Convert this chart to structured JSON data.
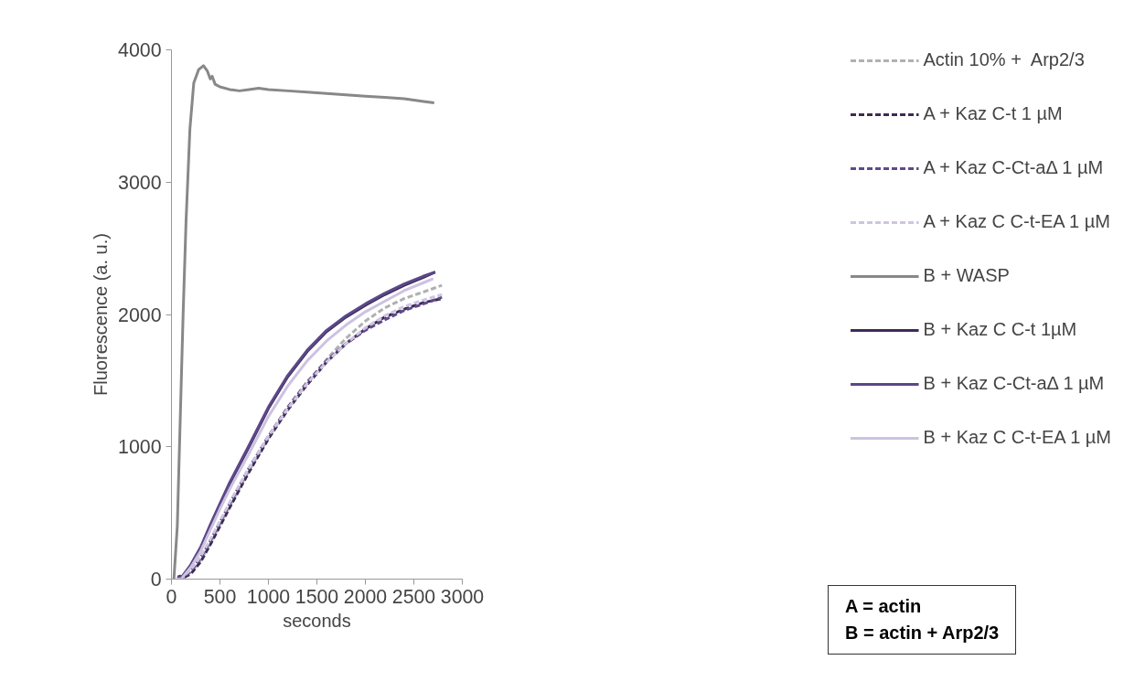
{
  "chart_data": {
    "type": "line",
    "xlabel": "seconds",
    "ylabel": "Fluorescence (a. u.)",
    "xlim": [
      0,
      3000
    ],
    "ylim": [
      0,
      4000
    ],
    "xticks": [
      0,
      500,
      1000,
      1500,
      2000,
      2500,
      3000
    ],
    "yticks": [
      0,
      1000,
      2000,
      3000,
      4000
    ],
    "grid": false,
    "legend": "right",
    "annotations": [
      "A = actin",
      "B = actin + Arp2/3"
    ],
    "series": [
      {
        "name": "Actin 10% +  Arp2/3",
        "color": "#b0b0b0",
        "line_style": "dashed",
        "x": [
          80,
          100,
          200,
          300,
          400,
          500,
          600,
          800,
          1000,
          1200,
          1400,
          1600,
          1800,
          2000,
          2200,
          2400,
          2600,
          2790
        ],
        "values": [
          0,
          20,
          50,
          140,
          270,
          410,
          550,
          820,
          1070,
          1290,
          1480,
          1660,
          1820,
          1950,
          2050,
          2120,
          2170,
          2220
        ]
      },
      {
        "name": "A + Kaz C-t 1 µM",
        "color": "#3b2a55",
        "line_style": "dashed",
        "x": [
          80,
          100,
          200,
          300,
          400,
          500,
          600,
          800,
          1000,
          1200,
          1400,
          1600,
          1800,
          2000,
          2200,
          2400,
          2600,
          2790
        ],
        "values": [
          30,
          0,
          40,
          130,
          260,
          400,
          540,
          810,
          1060,
          1280,
          1470,
          1640,
          1780,
          1890,
          1980,
          2040,
          2090,
          2120
        ]
      },
      {
        "name": "A + Kaz C-Ct-aΔ 1 µM",
        "color": "#5e4a8a",
        "line_style": "dashed",
        "x": [
          80,
          100,
          200,
          300,
          400,
          500,
          600,
          800,
          1000,
          1200,
          1400,
          1600,
          1800,
          2000,
          2200,
          2400,
          2600,
          2790
        ],
        "values": [
          10,
          0,
          60,
          160,
          290,
          430,
          570,
          840,
          1080,
          1300,
          1490,
          1650,
          1780,
          1880,
          1960,
          2030,
          2080,
          2130
        ]
      },
      {
        "name": "A + Kaz C C-t-EA 1 µM",
        "color": "#cfc5e0",
        "line_style": "dashed",
        "x": [
          80,
          100,
          200,
          300,
          400,
          500,
          600,
          800,
          1000,
          1200,
          1400,
          1600,
          1800,
          2000,
          2200,
          2400,
          2600,
          2790
        ],
        "values": [
          0,
          10,
          70,
          170,
          300,
          440,
          580,
          840,
          1080,
          1290,
          1480,
          1640,
          1780,
          1900,
          1990,
          2060,
          2110,
          2150
        ]
      },
      {
        "name": "B + WASP",
        "color": "#888888",
        "line_style": "solid",
        "x": [
          25,
          60,
          90,
          120,
          150,
          190,
          230,
          280,
          330,
          370,
          400,
          420,
          450,
          500,
          600,
          700,
          800,
          900,
          1000,
          1200,
          1400,
          1600,
          1800,
          2000,
          2200,
          2400,
          2600,
          2710
        ],
        "values": [
          0,
          400,
          1200,
          2000,
          2700,
          3400,
          3750,
          3850,
          3880,
          3840,
          3780,
          3800,
          3740,
          3720,
          3700,
          3690,
          3700,
          3710,
          3700,
          3690,
          3680,
          3670,
          3660,
          3650,
          3640,
          3630,
          3610,
          3600
        ]
      },
      {
        "name": "B + Kaz C C-t 1µM",
        "color": "#3d2b5a",
        "line_style": "solid",
        "x": [
          60,
          100,
          200,
          300,
          400,
          500,
          600,
          800,
          1000,
          1200,
          1400,
          1600,
          1800,
          2000,
          2200,
          2400,
          2600,
          2720
        ],
        "values": [
          0,
          0,
          100,
          230,
          400,
          560,
          720,
          1000,
          1290,
          1530,
          1720,
          1870,
          1980,
          2070,
          2150,
          2220,
          2280,
          2320
        ]
      },
      {
        "name": "B + Kaz C-Ct-aΔ 1 µM",
        "color": "#5c4788",
        "line_style": "solid",
        "x": [
          60,
          100,
          200,
          300,
          400,
          500,
          600,
          800,
          1000,
          1200,
          1400,
          1600,
          1800,
          2000,
          2200,
          2400,
          2600,
          2720
        ],
        "values": [
          20,
          10,
          110,
          240,
          410,
          570,
          730,
          1010,
          1300,
          1540,
          1730,
          1880,
          1990,
          2080,
          2160,
          2230,
          2290,
          2320
        ]
      },
      {
        "name": "B + Kaz C C-t-EA 1 µM",
        "color": "#cdc2e0",
        "line_style": "solid",
        "x": [
          60,
          100,
          200,
          300,
          400,
          500,
          600,
          800,
          1000,
          1200,
          1400,
          1600,
          1800,
          2000,
          2200,
          2400,
          2600,
          2700
        ],
        "values": [
          0,
          0,
          90,
          210,
          370,
          530,
          680,
          950,
          1230,
          1460,
          1650,
          1800,
          1920,
          2020,
          2100,
          2180,
          2240,
          2270
        ]
      }
    ]
  }
}
